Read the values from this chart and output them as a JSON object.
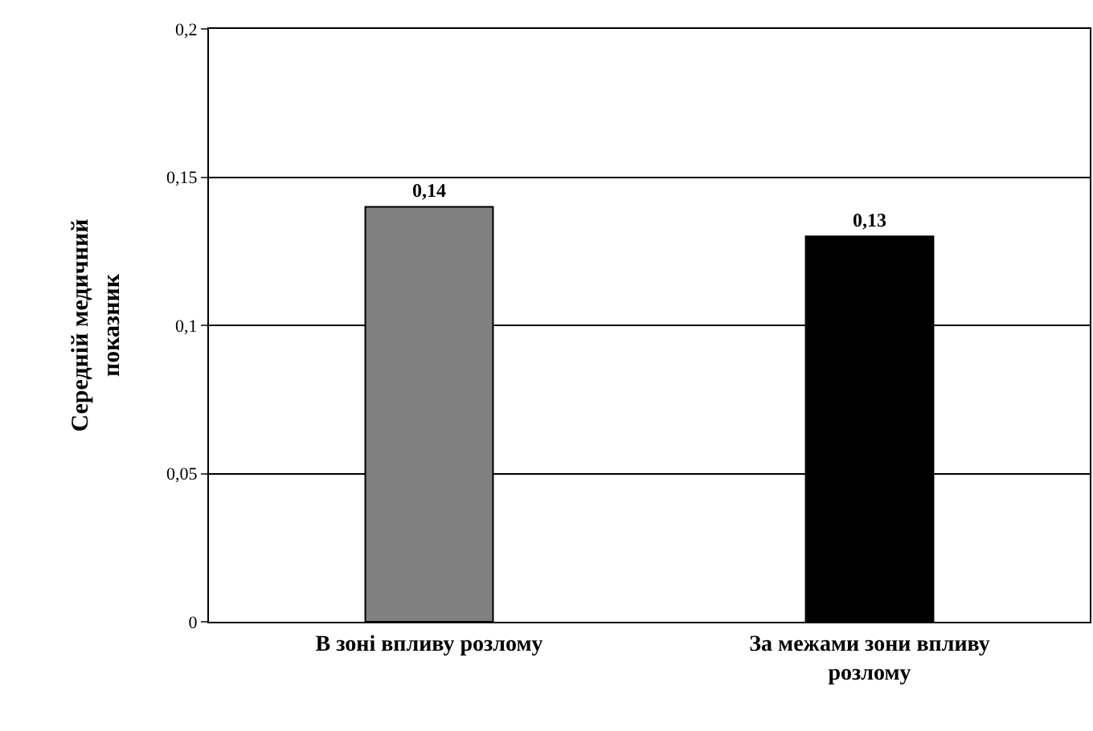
{
  "chart_data": {
    "type": "bar",
    "ylabel": "Середній медичний показник",
    "categories": [
      "В зоні впливу розлому",
      "За межами зони впливу розлому"
    ],
    "values": [
      0.14,
      0.13
    ],
    "colors": [
      "#808080",
      "#000000"
    ],
    "value_labels": [
      "0,14",
      "0,13"
    ],
    "ylim": [
      0,
      0.2
    ],
    "yticks": [
      0,
      {
        "value": 0.05,
        "label": "0,05"
      },
      {
        "value": 0.1,
        "label": "0,1"
      },
      {
        "value": 0.15,
        "label": "0,15"
      },
      {
        "value": 0.2,
        "label": "0,2"
      }
    ],
    "grid": "y"
  }
}
